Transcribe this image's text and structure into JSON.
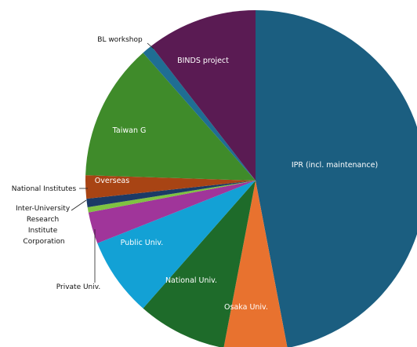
{
  "chart_data": {
    "type": "pie",
    "start_angle_deg": 0,
    "direction": "clockwise",
    "slices": [
      {
        "label": "IPR (incl. maintenance)",
        "value": 47.0,
        "color": "#1b5e80",
        "label_pos": "inside"
      },
      {
        "label": "Osaka Univ.",
        "value": 6.0,
        "color": "#e8722f",
        "label_pos": "inside"
      },
      {
        "label": "National Univ.",
        "value": 8.5,
        "color": "#1e6b2a",
        "label_pos": "inside"
      },
      {
        "label": "Public Univ.",
        "value": 7.5,
        "color": "#13a1d5",
        "label_pos": "inside"
      },
      {
        "label": "Private Univ.",
        "value": 3.0,
        "color": "#a0359a",
        "label_pos": "outside"
      },
      {
        "label": "Inter-University Research Institute Corporation",
        "value": 0.5,
        "color": "#7fc241",
        "label_pos": "outside"
      },
      {
        "label": "National Institutes",
        "value": 0.8,
        "color": "#1b3a66",
        "label_pos": "outside"
      },
      {
        "label": "Overseas",
        "value": 2.2,
        "color": "#a84414",
        "label_pos": "inside"
      },
      {
        "label": "Taiwan G",
        "value": 13.0,
        "color": "#3f8b2a",
        "label_pos": "inside"
      },
      {
        "label": "BL workshop",
        "value": 1.0,
        "color": "#1f6e93",
        "label_pos": "outside"
      },
      {
        "label": "BINDS project",
        "value": 10.5,
        "color": "#5a1b53",
        "label_pos": "inside"
      }
    ]
  }
}
